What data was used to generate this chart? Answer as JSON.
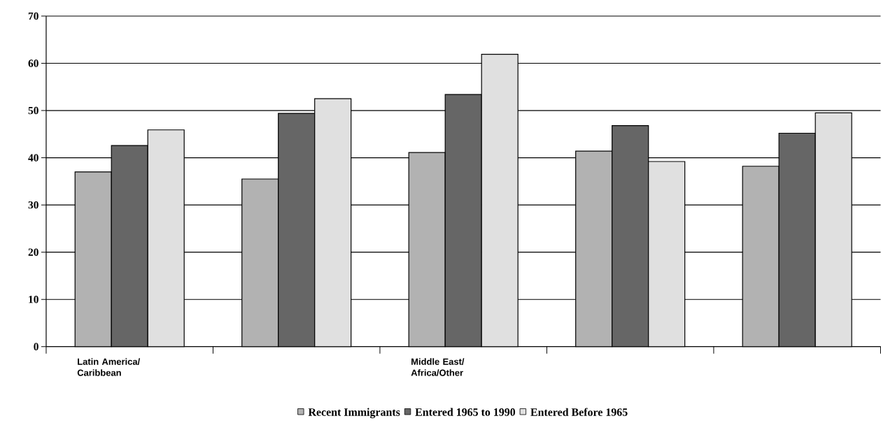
{
  "chart_data": {
    "type": "bar",
    "categories": [
      "Latin America/ Caribbean",
      null,
      "Middle East/ Africa/Other",
      null,
      null
    ],
    "series": [
      {
        "name": "Recent Immigrants",
        "color": "#b2b2b2",
        "values": [
          37.0,
          35.5,
          41.1,
          41.4,
          38.2
        ]
      },
      {
        "name": "Entered 1965 to 1990",
        "color": "#666666",
        "values": [
          42.6,
          49.4,
          53.4,
          46.8,
          45.2
        ]
      },
      {
        "name": "Entered Before 1965",
        "color": "#e0e0e0",
        "values": [
          45.9,
          52.5,
          61.9,
          39.2,
          49.5
        ]
      }
    ],
    "ylim": [
      0,
      70
    ],
    "yticks": [
      0,
      10,
      20,
      30,
      40,
      50,
      60,
      70
    ],
    "grid": "y",
    "legend": "bottom"
  }
}
